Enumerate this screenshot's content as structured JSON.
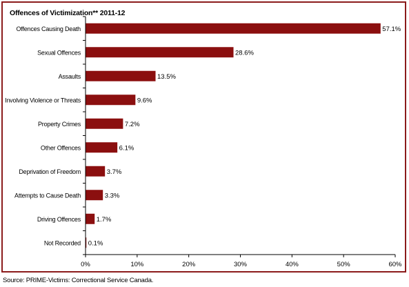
{
  "chart_data": {
    "type": "bar",
    "orientation": "horizontal",
    "title": "Offences of Victimization** 2011-12",
    "categories": [
      "Offences Causing Death",
      "Sexual Offences",
      "Assaults",
      "Involving Violence or Threats",
      "Property Crimes",
      "Other Offences",
      "Deprivation of Freedom",
      "Attempts to Cause Death",
      "Driving Offences",
      "Not Recorded"
    ],
    "values": [
      57.1,
      28.6,
      13.5,
      9.6,
      7.2,
      6.1,
      3.7,
      3.3,
      1.7,
      0.1
    ],
    "data_labels": [
      "57.1%",
      "28.6%",
      "13.5%",
      "9.6%",
      "7.2%",
      "6.1%",
      "3.7%",
      "3.3%",
      "1.7%",
      "0.1%"
    ],
    "xlim": [
      0,
      60
    ],
    "x_ticks": [
      0,
      10,
      20,
      30,
      40,
      50,
      60
    ],
    "x_tick_labels": [
      "0%",
      "10%",
      "20%",
      "30%",
      "40%",
      "50%",
      "60%"
    ],
    "grid": false,
    "legend": false,
    "bar_color": "#8b0f0f"
  },
  "colors": {
    "frame": "#8b1a1a",
    "bar": "#8b0f0f"
  },
  "source": "Source:  PRIME-Victims: Correctional Service Canada."
}
